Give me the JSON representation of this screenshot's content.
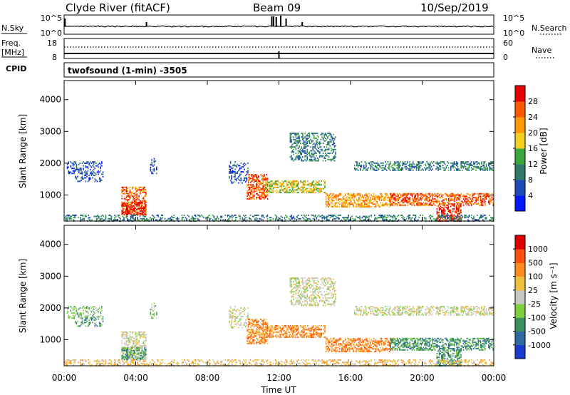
{
  "header": {
    "station": "Clyde River (fitACF)",
    "beam": "Beam 09",
    "date": "10/Sep/2019"
  },
  "strip_nsky": {
    "left_label": "N.Sky",
    "left_ticks": [
      "10^5",
      "10^0"
    ],
    "right_ticks": [
      "10^5",
      "10^0"
    ],
    "right_label": "N.Search",
    "right_legend_style": "dotted"
  },
  "strip_freq": {
    "left_label_1": "Freq.",
    "left_label_2": "[MHz]",
    "left_ticks": [
      "18",
      "8"
    ],
    "right_ticks": [
      "60",
      "0"
    ],
    "right_label": "Nave",
    "right_legend_style": "dotted"
  },
  "cpid": {
    "label": "CPID",
    "value": "twofsound (1-min) -3505"
  },
  "chart_data": [
    {
      "type": "heatmap",
      "panel": "power",
      "ylabel": "Slant Range [km]",
      "yticks": [
        "4000",
        "3000",
        "2000",
        "1000"
      ],
      "ylim": [
        180,
        4600
      ],
      "xlim_hours": [
        0,
        24
      ],
      "colorbar": {
        "label": "Power [dB]",
        "ticks": [
          "28",
          "24",
          "20",
          "16",
          "12",
          "8",
          "4"
        ],
        "colors": [
          "#0018ff",
          "#1f4ab8",
          "#2f7a6a",
          "#3aa83a",
          "#f0d020",
          "#ff9a00",
          "#ff5a00",
          "#e80000"
        ]
      }
    },
    {
      "type": "heatmap",
      "panel": "velocity",
      "ylabel": "Slant Range [km]",
      "yticks": [
        "4000",
        "3000",
        "2000",
        "1000"
      ],
      "ylim": [
        180,
        4600
      ],
      "xlim_hours": [
        0,
        24
      ],
      "colorbar": {
        "label": "Velocity [m s⁻¹]",
        "ticks": [
          "1000",
          "500",
          "100",
          "25",
          "-25",
          "-100",
          "-500",
          "-1000"
        ],
        "colors": [
          "#1a3ad0",
          "#2f6aa0",
          "#3a9060",
          "#7ed040",
          "#c8c8c0",
          "#f0c040",
          "#ff8c20",
          "#ff5010",
          "#e00000"
        ]
      }
    }
  ],
  "xaxis": {
    "ticks": [
      "00:00",
      "04:00",
      "08:00",
      "12:00",
      "16:00",
      "20:00",
      "00:00"
    ],
    "label": "Time UT"
  }
}
